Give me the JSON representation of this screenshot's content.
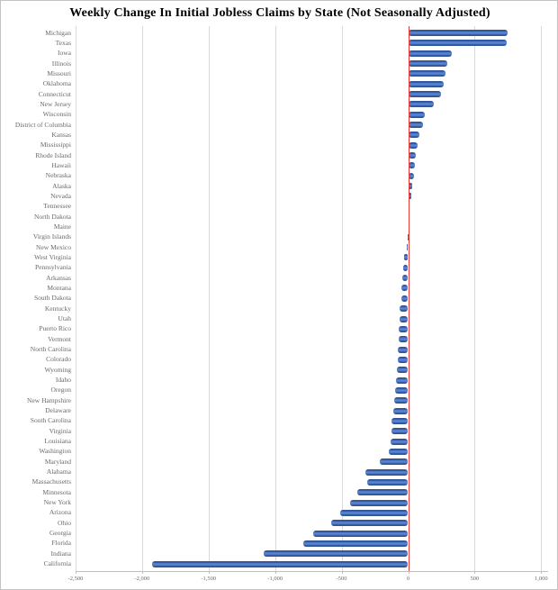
{
  "chart_data": {
    "type": "bar",
    "orientation": "horizontal",
    "title": "Weekly Change In Initial Jobless Claims by State (Not Seasonally Adjusted)",
    "categories": [
      "Michigan",
      "Texas",
      "Iowa",
      "Illinois",
      "Missouri",
      "Oklahoma",
      "Connecticut",
      "New Jersey",
      "Wisconsin",
      "District of Columbia",
      "Kansas",
      "Mississippi",
      "Rhode Island",
      "Hawaii",
      "Nebraska",
      "Alaska",
      "Nevada",
      "Tennessee",
      "North Dakota",
      "Maine",
      "Virgin Islands",
      "New Mexico",
      "West Virginia",
      "Pennsylvania",
      "Arkansas",
      "Montana",
      "South Dakota",
      "Kentucky",
      "Utah",
      "Puerto Rico",
      "Vermont",
      "North Carolina",
      "Colorado",
      "Wyoming",
      "Idaho",
      "Oregon",
      "New Hampshire",
      "Delaware",
      "South Carolina",
      "Virginia",
      "Louisiana",
      "Washington",
      "Maryland",
      "Alabama",
      "Massachusetts",
      "Minnesota",
      "New York",
      "Arizona",
      "Ohio",
      "Georgia",
      "Florida",
      "Indiana",
      "California"
    ],
    "values": [
      750,
      738,
      331,
      291,
      284,
      264,
      250,
      196,
      122,
      113,
      85,
      70,
      57,
      50,
      43,
      30,
      22,
      9,
      3,
      2,
      -2,
      -12,
      -30,
      -36,
      -42,
      -48,
      -54,
      -61,
      -64,
      -68,
      -71,
      -75,
      -81,
      -84,
      -89,
      -101,
      -108,
      -115,
      -122,
      -127,
      -134,
      -144,
      -213,
      -322,
      -311,
      -385,
      -435,
      -509,
      -576,
      -716,
      -786,
      -1086,
      -1926
    ],
    "xlabel": "",
    "ylabel": "",
    "xlim": [
      -2500,
      1000
    ],
    "x_ticks": [
      -2500,
      -2000,
      -1500,
      -1000,
      -500,
      0,
      500,
      1000
    ],
    "x_tick_labels": [
      "-2,500",
      "-2,000",
      "-1,500",
      "-1,000",
      "-500",
      "0",
      "500",
      "1,000"
    ],
    "grid": "vertical",
    "legend": "none",
    "colors": {
      "bar_fill": "#4d79c7",
      "bar_edge": "#2f5496",
      "zero_line": "#e53935",
      "gridline": "#d9d9d9",
      "axis_line": "#bfbfbf",
      "tick_label": "#6a6a6a",
      "title": "#000000"
    }
  }
}
